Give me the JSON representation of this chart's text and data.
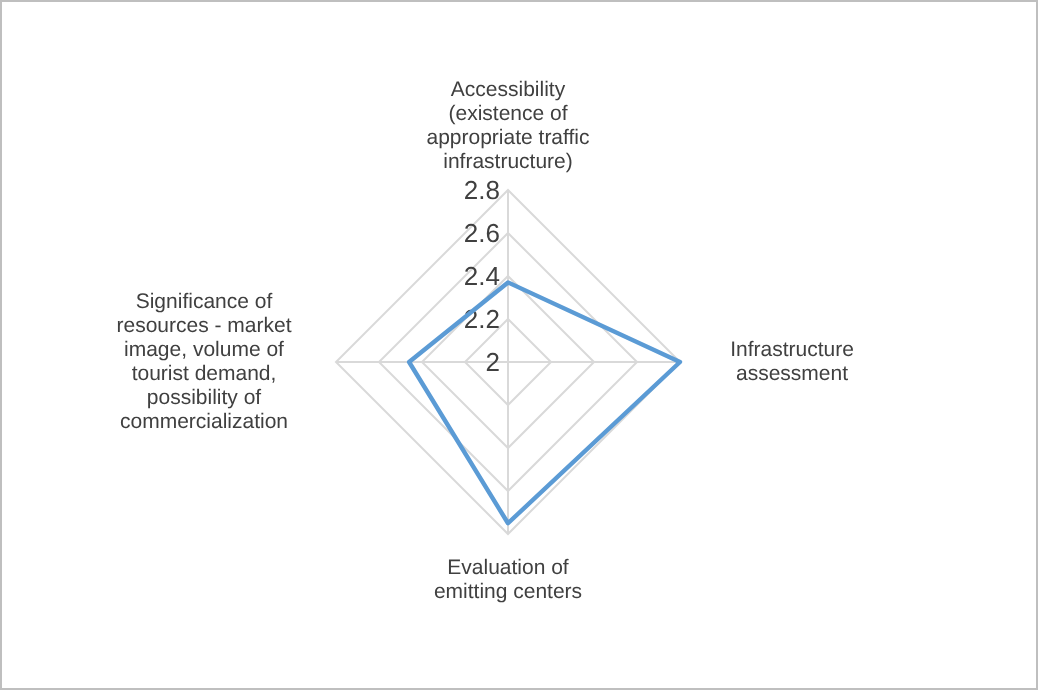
{
  "chart_data": {
    "type": "radar",
    "categories": [
      "Accessibility (existence of appropriate traffic infrastructure)",
      "Infrastructure assessment",
      "Evaluation of emitting centers",
      "Significance of resources - market image, volume of tourist demand, possibility of commercialization"
    ],
    "series": [
      {
        "color": "#5b9bd5",
        "values": [
          2.37,
          2.8,
          2.75,
          2.46
        ]
      }
    ],
    "ylim": [
      2,
      2.8
    ],
    "yticks": [
      2,
      2.2,
      2.4,
      2.6,
      2.8
    ],
    "grid": true
  }
}
